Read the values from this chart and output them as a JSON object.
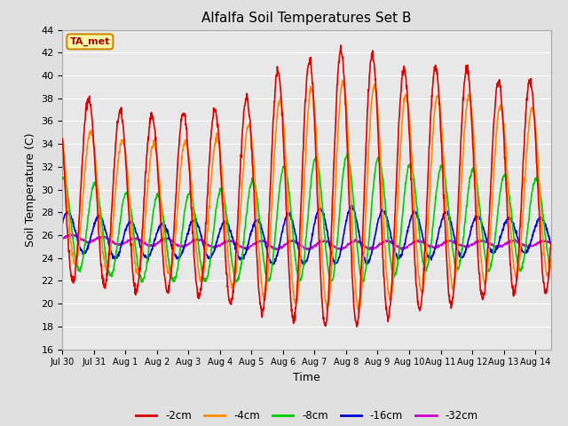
{
  "title": "Alfalfa Soil Temperatures Set B",
  "xlabel": "Time",
  "ylabel": "Soil Temperature (C)",
  "ylim": [
    16,
    44
  ],
  "yticks": [
    16,
    18,
    20,
    22,
    24,
    26,
    28,
    30,
    32,
    34,
    36,
    38,
    40,
    42,
    44
  ],
  "xtick_labels": [
    "Jul 30",
    "Jul 31",
    "Aug 1",
    "Aug 2",
    "Aug 3",
    "Aug 4",
    "Aug 5",
    "Aug 6",
    "Aug 7",
    "Aug 8",
    "Aug 9",
    "Aug 10",
    "Aug 11",
    "Aug 12",
    "Aug 13",
    "Aug 14"
  ],
  "background_color": "#e0e0e0",
  "plot_bg_color": "#e8e8e8",
  "grid_color": "#ffffff",
  "series": {
    "-2cm": {
      "color": "#dd0000",
      "lw": 1.2
    },
    "-4cm": {
      "color": "#ff8800",
      "lw": 1.2
    },
    "-8cm": {
      "color": "#00cc00",
      "lw": 1.2
    },
    "-16cm": {
      "color": "#0000cc",
      "lw": 1.2
    },
    "-32cm": {
      "color": "#cc00cc",
      "lw": 1.2
    }
  },
  "annotation_text": "TA_met",
  "annotation_color": "#aa0000",
  "annotation_bg": "#ffffaa",
  "annotation_border": "#cc8800",
  "n_days": 15.5,
  "points_per_day": 96,
  "peak_2cm": [
    38.5,
    37.0,
    36.5,
    36.5,
    37.0,
    37.0,
    40.0,
    41.0,
    42.0,
    42.5,
    40.5,
    40.5,
    41.0,
    39.5,
    39.5
  ],
  "trough_2cm": [
    22.0,
    21.5,
    21.0,
    21.0,
    20.5,
    20.0,
    19.0,
    18.5,
    18.0,
    18.0,
    19.0,
    19.5,
    20.0,
    20.5,
    21.0
  ],
  "peak_4cm": [
    35.5,
    34.5,
    34.0,
    34.0,
    34.5,
    34.5,
    37.5,
    38.5,
    39.5,
    39.5,
    38.5,
    38.0,
    38.5,
    37.5,
    37.0
  ],
  "trough_4cm": [
    23.5,
    23.0,
    22.5,
    22.5,
    22.0,
    21.5,
    20.5,
    20.0,
    19.5,
    19.5,
    20.5,
    21.0,
    21.5,
    22.0,
    22.5
  ],
  "peak_8cm": [
    31.0,
    30.0,
    29.5,
    29.5,
    30.0,
    30.0,
    31.5,
    32.5,
    33.0,
    33.0,
    32.5,
    32.0,
    32.0,
    31.5,
    31.0
  ],
  "trough_8cm": [
    23.0,
    22.5,
    22.0,
    22.0,
    22.0,
    22.0,
    22.0,
    22.0,
    22.0,
    22.0,
    22.5,
    23.0,
    23.0,
    23.0,
    23.0
  ],
  "peak_16cm": [
    28.0,
    27.5,
    27.0,
    27.0,
    27.5,
    27.0,
    27.5,
    28.0,
    28.5,
    28.5,
    28.0,
    28.0,
    28.0,
    27.5,
    27.5
  ],
  "trough_16cm": [
    24.5,
    24.0,
    24.0,
    24.0,
    24.0,
    24.0,
    23.5,
    23.5,
    23.5,
    23.5,
    24.0,
    24.0,
    24.0,
    24.5,
    24.5
  ],
  "peak_32cm": [
    26.0,
    25.8,
    25.7,
    25.7,
    25.6,
    25.5,
    25.5,
    25.5,
    25.5,
    25.5,
    25.5,
    25.5,
    25.5,
    25.5,
    25.5
  ],
  "trough_32cm": [
    25.5,
    25.2,
    25.1,
    25.0,
    25.0,
    24.9,
    24.8,
    24.8,
    24.8,
    24.8,
    24.8,
    24.9,
    25.0,
    25.0,
    25.0
  ]
}
